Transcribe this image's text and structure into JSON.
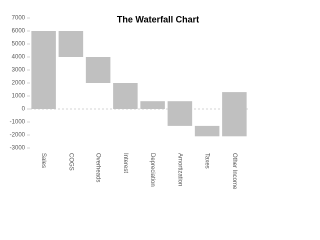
{
  "chart_data": {
    "type": "waterfall",
    "title": "The Waterfall Chart",
    "categories": [
      "Sales",
      "COGS",
      "Overheads",
      "Interest",
      "Depreciation",
      "Amortization",
      "Taxes",
      "Other Income"
    ],
    "values": [
      6000,
      -2000,
      -2000,
      -2000,
      600,
      -1900,
      -800,
      3400
    ],
    "color": "#c0c0c0",
    "ylim": [
      -3000,
      7000
    ],
    "yticks": [
      -3000,
      -2000,
      -1000,
      0,
      1000,
      2000,
      3000,
      4000,
      5000,
      6000,
      7000
    ]
  }
}
